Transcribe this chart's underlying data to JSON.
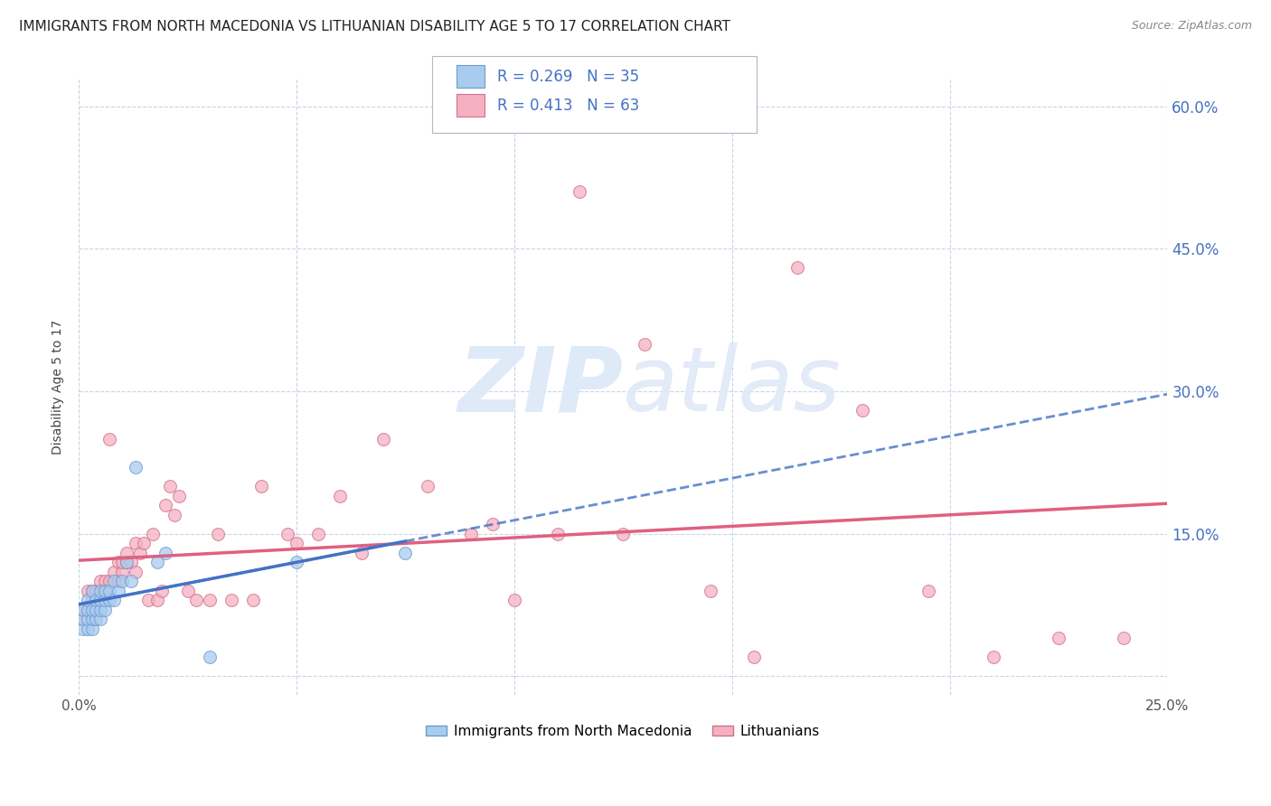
{
  "title": "IMMIGRANTS FROM NORTH MACEDONIA VS LITHUANIAN DISABILITY AGE 5 TO 17 CORRELATION CHART",
  "source": "Source: ZipAtlas.com",
  "ylabel": "Disability Age 5 to 17",
  "xlim": [
    0,
    0.25
  ],
  "ylim": [
    -0.02,
    0.63
  ],
  "blue_R": 0.269,
  "blue_N": 35,
  "pink_R": 0.413,
  "pink_N": 63,
  "blue_color": "#a8ccf0",
  "pink_color": "#f5b0c0",
  "blue_edge_color": "#7099cc",
  "pink_edge_color": "#d07090",
  "blue_line_color": "#4472c4",
  "pink_line_color": "#e06080",
  "legend_blue_label": "Immigrants from North Macedonia",
  "legend_pink_label": "Lithuanians",
  "blue_scatter_x": [
    0.001,
    0.001,
    0.001,
    0.002,
    0.002,
    0.002,
    0.002,
    0.003,
    0.003,
    0.003,
    0.003,
    0.004,
    0.004,
    0.004,
    0.005,
    0.005,
    0.005,
    0.005,
    0.006,
    0.006,
    0.006,
    0.007,
    0.007,
    0.008,
    0.008,
    0.009,
    0.01,
    0.011,
    0.012,
    0.013,
    0.018,
    0.02,
    0.03,
    0.05,
    0.075
  ],
  "blue_scatter_y": [
    0.05,
    0.06,
    0.07,
    0.05,
    0.06,
    0.07,
    0.08,
    0.05,
    0.06,
    0.07,
    0.09,
    0.06,
    0.07,
    0.08,
    0.06,
    0.07,
    0.08,
    0.09,
    0.07,
    0.08,
    0.09,
    0.08,
    0.09,
    0.08,
    0.1,
    0.09,
    0.1,
    0.12,
    0.1,
    0.22,
    0.12,
    0.13,
    0.02,
    0.12,
    0.13
  ],
  "pink_scatter_x": [
    0.001,
    0.001,
    0.002,
    0.002,
    0.003,
    0.003,
    0.004,
    0.004,
    0.005,
    0.005,
    0.006,
    0.006,
    0.007,
    0.007,
    0.008,
    0.009,
    0.009,
    0.01,
    0.01,
    0.011,
    0.011,
    0.012,
    0.013,
    0.013,
    0.014,
    0.015,
    0.016,
    0.017,
    0.018,
    0.019,
    0.02,
    0.021,
    0.022,
    0.023,
    0.025,
    0.027,
    0.03,
    0.032,
    0.035,
    0.04,
    0.042,
    0.048,
    0.05,
    0.055,
    0.06,
    0.065,
    0.07,
    0.08,
    0.09,
    0.095,
    0.1,
    0.11,
    0.115,
    0.125,
    0.13,
    0.145,
    0.155,
    0.165,
    0.18,
    0.195,
    0.21,
    0.225,
    0.24
  ],
  "pink_scatter_y": [
    0.06,
    0.07,
    0.07,
    0.09,
    0.08,
    0.09,
    0.08,
    0.09,
    0.08,
    0.1,
    0.09,
    0.1,
    0.1,
    0.25,
    0.11,
    0.1,
    0.12,
    0.11,
    0.12,
    0.12,
    0.13,
    0.12,
    0.14,
    0.11,
    0.13,
    0.14,
    0.08,
    0.15,
    0.08,
    0.09,
    0.18,
    0.2,
    0.17,
    0.19,
    0.09,
    0.08,
    0.08,
    0.15,
    0.08,
    0.08,
    0.2,
    0.15,
    0.14,
    0.15,
    0.19,
    0.13,
    0.25,
    0.2,
    0.15,
    0.16,
    0.08,
    0.15,
    0.51,
    0.15,
    0.35,
    0.09,
    0.02,
    0.43,
    0.28,
    0.09,
    0.02,
    0.04,
    0.04
  ],
  "background_color": "#ffffff",
  "grid_color": "#c8d4e8",
  "title_fontsize": 11,
  "axis_label_fontsize": 10,
  "tick_fontsize": 11,
  "right_tick_color": "#4472c4",
  "watermark_color": "#dce8f8",
  "watermark_alpha": 0.9
}
